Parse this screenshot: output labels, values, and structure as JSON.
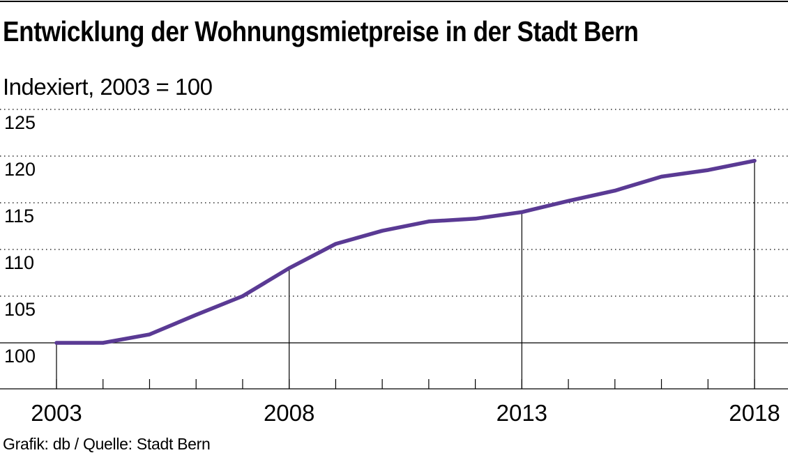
{
  "title": "Entwicklung der Wohnungsmietpreise in der Stadt Bern",
  "subtitle": "Indexiert, 2003 = 100",
  "footer": "Grafik: db / Quelle: Stadt Bern",
  "colors": {
    "line": "#5a3a94",
    "axis": "#000000",
    "grid": "#000000"
  },
  "chart_data": {
    "type": "line",
    "title": "Entwicklung der Wohnungsmietpreise in der Stadt Bern",
    "subtitle": "Indexiert, 2003 = 100",
    "xlabel": "",
    "ylabel": "",
    "x": [
      2003,
      2004,
      2005,
      2006,
      2007,
      2008,
      2009,
      2010,
      2011,
      2012,
      2013,
      2014,
      2015,
      2016,
      2017,
      2018
    ],
    "series": [
      {
        "values": [
          100,
          100,
          100.9,
          103.0,
          105.0,
          108.0,
          110.6,
          112.0,
          113.0,
          113.3,
          114.0,
          115.2,
          116.3,
          117.8,
          118.5,
          119.5
        ]
      }
    ],
    "xlim": [
      2003,
      2018
    ],
    "ylim": [
      97.5,
      125
    ],
    "yticks": [
      100,
      105,
      110,
      115,
      120,
      125
    ],
    "xtick_labels": [
      2003,
      2008,
      2013,
      2018
    ],
    "grid": "horizontal dotted",
    "legend": "none"
  }
}
